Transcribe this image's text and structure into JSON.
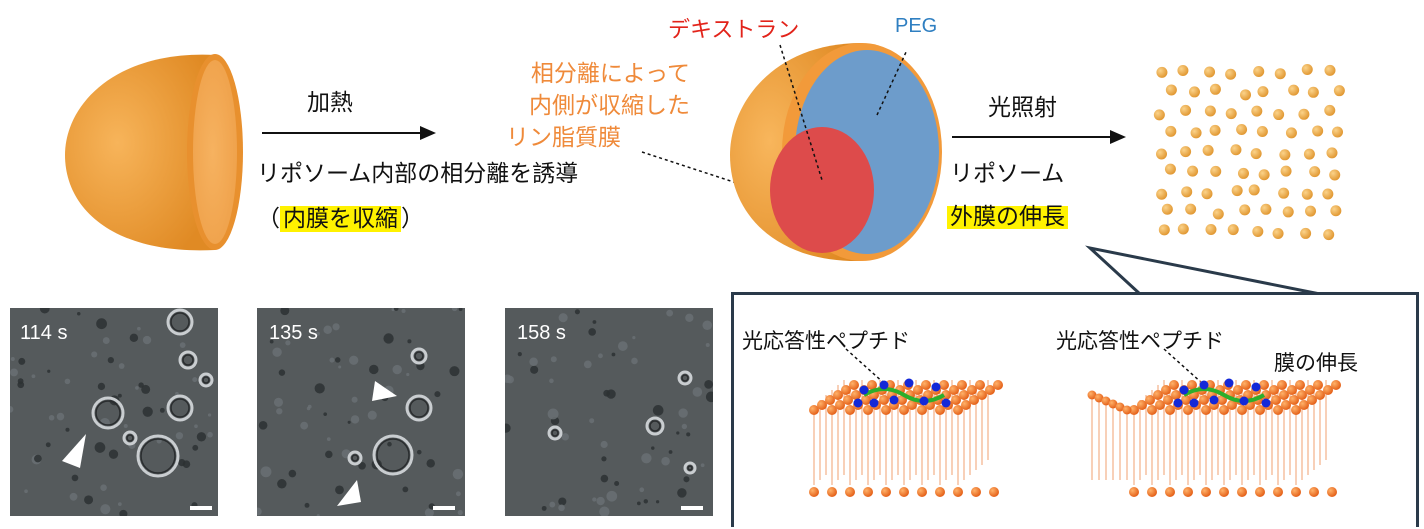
{
  "top": {
    "step1_arrow_label": "加熱",
    "step1_desc": "リポソーム内部の相分離を誘導",
    "step1_paren_open": "（",
    "step1_highlight": "内膜を収縮",
    "step1_paren_close": "）",
    "orange_note": [
      "相分離によって",
      "内側が収縮した",
      "リン脂質膜"
    ],
    "dextran_label": "デキストラン",
    "peg_label": "PEG",
    "step2_arrow_label": "光照射",
    "step2_desc": "リポソーム",
    "step2_highlight": "外膜の伸長"
  },
  "micrographs": [
    {
      "time": "114 s"
    },
    {
      "time": "135 s"
    },
    {
      "time": "158 s"
    }
  ],
  "panel": {
    "left_label": "光応答性ペプチド",
    "right_label": "光応答性ペプチド",
    "right_sublabel": "膜の伸長"
  },
  "colors": {
    "liposome_orange": "#f29a3a",
    "dextran_red": "#dd4b4b",
    "peg_blue": "#6d9ccb",
    "highlight_yellow": "#fff200",
    "note_orange": "#ef8a3a",
    "panel_border": "#2a3a4a"
  }
}
